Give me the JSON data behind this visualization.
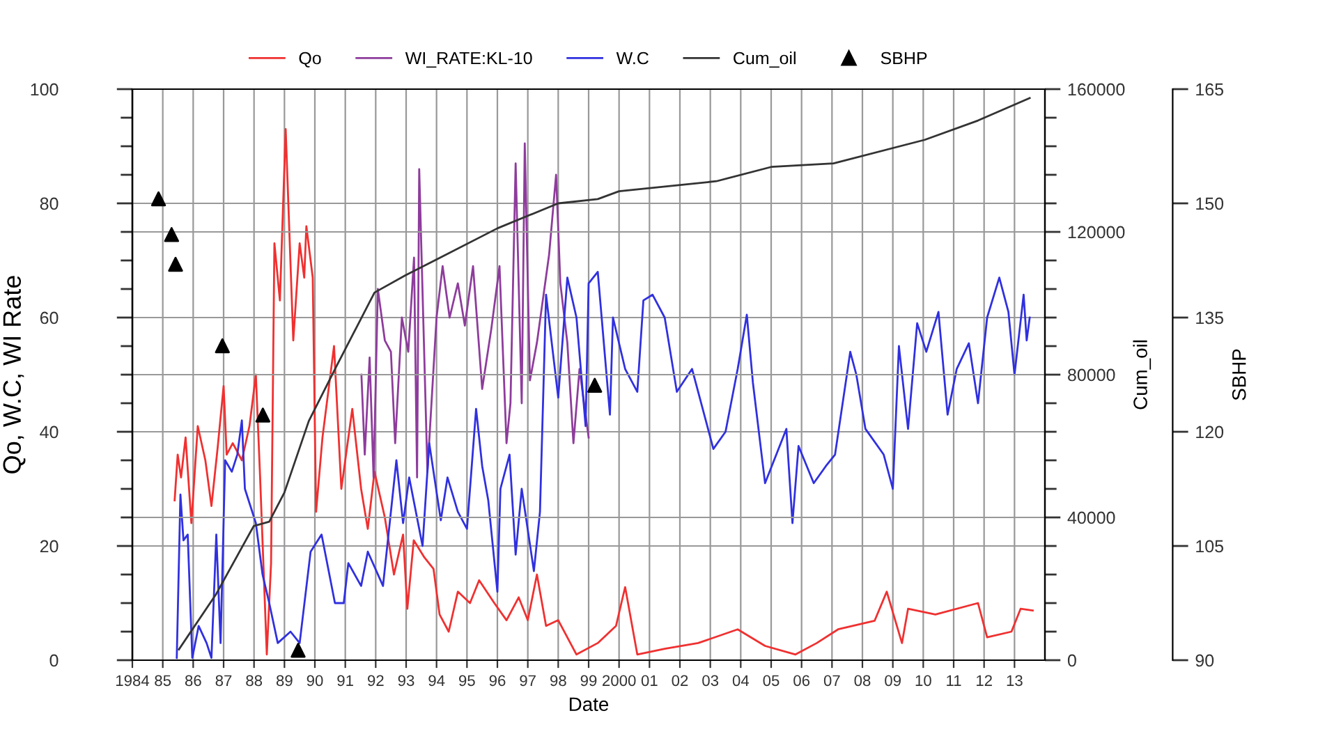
{
  "chart_data": {
    "type": "line",
    "xlabel": "Date",
    "ylabel": "Qo, W.C, WI Rate",
    "y2label": "Cum_oil",
    "y3label": "SBHP",
    "xlim": [
      1984,
      2014
    ],
    "xticks": [
      {
        "value": 1984,
        "label": "1984"
      },
      {
        "value": 1985,
        "label": "85"
      },
      {
        "value": 1986,
        "label": "86"
      },
      {
        "value": 1987,
        "label": "87"
      },
      {
        "value": 1988,
        "label": "88"
      },
      {
        "value": 1989,
        "label": "89"
      },
      {
        "value": 1990,
        "label": "90"
      },
      {
        "value": 1991,
        "label": "91"
      },
      {
        "value": 1992,
        "label": "92"
      },
      {
        "value": 1993,
        "label": "93"
      },
      {
        "value": 1994,
        "label": "94"
      },
      {
        "value": 1995,
        "label": "95"
      },
      {
        "value": 1996,
        "label": "96"
      },
      {
        "value": 1997,
        "label": "97"
      },
      {
        "value": 1998,
        "label": "98"
      },
      {
        "value": 1999,
        "label": "99"
      },
      {
        "value": 2000,
        "label": "2000"
      },
      {
        "value": 2001,
        "label": "01"
      },
      {
        "value": 2002,
        "label": "02"
      },
      {
        "value": 2003,
        "label": "03"
      },
      {
        "value": 2004,
        "label": "04"
      },
      {
        "value": 2005,
        "label": "05"
      },
      {
        "value": 2006,
        "label": "06"
      },
      {
        "value": 2007,
        "label": "07"
      },
      {
        "value": 2008,
        "label": "08"
      },
      {
        "value": 2009,
        "label": "09"
      },
      {
        "value": 2010,
        "label": "10"
      },
      {
        "value": 2011,
        "label": "11"
      },
      {
        "value": 2012,
        "label": "12"
      },
      {
        "value": 2013,
        "label": "13"
      }
    ],
    "ylim": [
      0,
      100
    ],
    "yticks": [
      0,
      20,
      40,
      60,
      80,
      100,
      {
        "value": 5,
        "label": null
      },
      {
        "value": 10,
        "label": null
      },
      {
        "value": 15,
        "label": null
      },
      {
        "value": 25,
        "label": null
      },
      {
        "value": 30,
        "label": null
      },
      {
        "value": 35,
        "label": null
      },
      {
        "value": 45,
        "label": null
      },
      {
        "value": 50,
        "label": null
      },
      {
        "value": 55,
        "label": null
      },
      {
        "value": 65,
        "label": null
      },
      {
        "value": 70,
        "label": null
      },
      {
        "value": 75,
        "label": null
      },
      {
        "value": 85,
        "label": null
      },
      {
        "value": 90,
        "label": null
      },
      {
        "value": 95,
        "label": null
      }
    ],
    "y2lim": [
      0,
      160000
    ],
    "y2ticks": [
      0,
      40000,
      80000,
      120000,
      160000,
      {
        "value": 8000,
        "label": null
      },
      {
        "value": 16000,
        "label": null
      },
      {
        "value": 24000,
        "label": null
      },
      {
        "value": 32000,
        "label": null
      },
      {
        "value": 48000,
        "label": null
      },
      {
        "value": 56000,
        "label": null
      },
      {
        "value": 64000,
        "label": null
      },
      {
        "value": 72000,
        "label": null
      },
      {
        "value": 88000,
        "label": null
      },
      {
        "value": 96000,
        "label": null
      },
      {
        "value": 104000,
        "label": null
      },
      {
        "value": 112000,
        "label": null
      },
      {
        "value": 128000,
        "label": null
      },
      {
        "value": 136000,
        "label": null
      },
      {
        "value": 144000,
        "label": null
      },
      {
        "value": 152000,
        "label": null
      }
    ],
    "y3lim": [
      90,
      165
    ],
    "y3ticks": [
      90,
      105,
      120,
      135,
      150,
      165
    ],
    "grid": true,
    "legend": "top",
    "series": [
      {
        "name": "Qo",
        "color": "#f03030",
        "axis": "y",
        "x": [
          1985.39,
          1985.49,
          1985.6,
          1985.75,
          1985.94,
          1986.15,
          1986.4,
          1986.6,
          1986.8,
          1987.0,
          1987.1,
          1987.3,
          1987.6,
          1987.85,
          1988.06,
          1988.2,
          1988.42,
          1988.56,
          1988.67,
          1988.85,
          1989.04,
          1989.29,
          1989.5,
          1989.65,
          1989.72,
          1989.93,
          1990.04,
          1990.25,
          1990.63,
          1990.87,
          1991.23,
          1991.52,
          1991.74,
          1991.96,
          1992.3,
          1992.6,
          1992.9,
          1993.04,
          1993.25,
          1993.6,
          1993.9,
          1994.1,
          1994.4,
          1994.7,
          1995.1,
          1995.4,
          1995.9,
          1996.3,
          1996.7,
          1997.0,
          1997.3,
          1997.6,
          1998.0,
          1998.6,
          1999.3,
          1999.9,
          2000.2,
          2000.6,
          2001.5,
          2002.6,
          2003.9,
          2004.8,
          2005.8,
          2006.5,
          2007.2,
          2008.4,
          2008.8,
          2009.3,
          2009.5,
          2010.4,
          2011.8,
          2012.1,
          2012.9,
          2013.2,
          2013.6
        ],
        "values": [
          28,
          36,
          32,
          39,
          24,
          41,
          35,
          27,
          37,
          48,
          36,
          38,
          35,
          41,
          50,
          32,
          1,
          17,
          73,
          63,
          93,
          56,
          73,
          67,
          76,
          67,
          26,
          39,
          55,
          30,
          44,
          30,
          23,
          33,
          25,
          15,
          22,
          9,
          21,
          18,
          16,
          8,
          5,
          12,
          10,
          14,
          10,
          7,
          11,
          7,
          15,
          6,
          7,
          1,
          3,
          6,
          12.8,
          1,
          2,
          3,
          5.4,
          2.5,
          1,
          3,
          5.4,
          6.9,
          12,
          3,
          9,
          8,
          10,
          4,
          5,
          9,
          8.7
        ]
      },
      {
        "name": "WI_RATE:KL-10",
        "color": "#8e3c9c",
        "axis": "y",
        "x": [
          1991.53,
          1991.64,
          1991.8,
          1991.93,
          1992.07,
          1992.3,
          1992.5,
          1992.64,
          1992.86,
          1993.07,
          1993.26,
          1993.36,
          1993.43,
          1993.7,
          1994.0,
          1994.2,
          1994.43,
          1994.7,
          1994.93,
          1995.2,
          1995.5,
          1995.8,
          1996.07,
          1996.3,
          1996.43,
          1996.6,
          1996.8,
          1996.9,
          1997.07,
          1997.3,
          1997.7,
          1997.93,
          1998.07,
          1998.3,
          1998.5,
          1998.7,
          1999.0
        ],
        "values": [
          50,
          36,
          53,
          32,
          65,
          56,
          54,
          38,
          60,
          54,
          70.5,
          32,
          86,
          33,
          60,
          69,
          60,
          66,
          58.6,
          69,
          47.5,
          58,
          69,
          38,
          45,
          87,
          45,
          90.5,
          49,
          55.6,
          71,
          85,
          66,
          55.6,
          38,
          51,
          39
        ]
      },
      {
        "name": "W.C",
        "color": "#3030e0",
        "axis": "y",
        "x": [
          1985.46,
          1985.58,
          1985.68,
          1985.82,
          1985.97,
          1986.18,
          1986.44,
          1986.6,
          1986.76,
          1986.9,
          1987.05,
          1987.27,
          1987.45,
          1987.6,
          1987.7,
          1988.06,
          1988.28,
          1988.5,
          1988.78,
          1989.2,
          1989.5,
          1989.86,
          1990.22,
          1990.66,
          1990.95,
          1991.1,
          1991.52,
          1991.74,
          1992.24,
          1992.68,
          1992.9,
          1993.1,
          1993.54,
          1993.76,
          1994.14,
          1994.36,
          1994.7,
          1995.0,
          1995.3,
          1995.5,
          1995.7,
          1996.0,
          1996.1,
          1996.4,
          1996.6,
          1996.8,
          1997.2,
          1997.4,
          1997.6,
          1998.0,
          1998.3,
          1998.6,
          1998.9,
          1999.0,
          1999.3,
          1999.7,
          1999.8,
          2000.2,
          2000.6,
          2000.8,
          2001.1,
          2001.5,
          2001.9,
          2002.4,
          2002.8,
          2003.1,
          2003.5,
          2003.9,
          2004.2,
          2004.4,
          2004.8,
          2005.5,
          2005.7,
          2005.9,
          2006.4,
          2006.8,
          2007.1,
          2007.6,
          2007.8,
          2008.1,
          2008.7,
          2009.0,
          2009.2,
          2009.5,
          2009.8,
          2010.1,
          2010.5,
          2010.8,
          2011.1,
          2011.5,
          2011.8,
          2012.1,
          2012.5,
          2012.8,
          2013.0,
          2013.3,
          2013.4,
          2013.5
        ],
        "values": [
          0.4,
          29,
          21,
          22,
          0.4,
          6,
          3,
          0.4,
          22,
          3,
          35,
          33,
          36,
          42,
          30,
          24,
          15,
          10,
          3,
          5,
          3,
          19,
          22,
          10,
          10,
          17,
          13,
          19,
          13,
          35,
          24,
          32,
          20,
          38,
          24.5,
          32,
          26,
          23,
          44,
          34,
          28,
          12,
          30,
          36,
          18.5,
          30,
          15.6,
          26,
          64,
          46,
          67,
          60,
          41,
          66,
          68,
          43,
          60,
          51,
          47,
          63,
          64,
          60,
          47,
          51,
          43,
          37,
          40,
          51,
          60.5,
          48.6,
          31,
          40.5,
          24,
          37.5,
          31,
          34,
          36,
          54,
          50,
          40.5,
          36,
          30,
          55,
          40.5,
          59,
          54,
          61,
          43,
          51,
          55.5,
          45,
          60,
          67,
          61,
          50,
          64,
          56,
          60
        ]
      },
      {
        "name": "Cum_oil",
        "color": "#333333",
        "axis": "y2",
        "x": [
          1985.53,
          1986.76,
          1987.99,
          1988.5,
          1989.0,
          1989.8,
          1990.73,
          1991.96,
          1992.97,
          1994.05,
          1996.0,
          1998.0,
          1999.3,
          2000.0,
          2003.2,
          2005.0,
          2007.05,
          2010.05,
          2011.8,
          2013.5
        ],
        "values": [
          3000,
          18600,
          37600,
          38800,
          47000,
          67000,
          82700,
          103000,
          107800,
          112500,
          121000,
          128000,
          129200,
          131400,
          134200,
          138200,
          139200,
          145800,
          151200,
          157500
        ]
      },
      {
        "name": "SBHP",
        "type": "scatter",
        "color": "#000000",
        "axis": "y3",
        "marker": "triangle",
        "x": [
          1984.86,
          1985.29,
          1985.42,
          1986.96,
          1988.29,
          1989.45,
          1999.2
        ],
        "values": [
          150.6,
          145.9,
          142.0,
          131.3,
          122.2,
          91.3,
          126.1
        ]
      }
    ]
  }
}
